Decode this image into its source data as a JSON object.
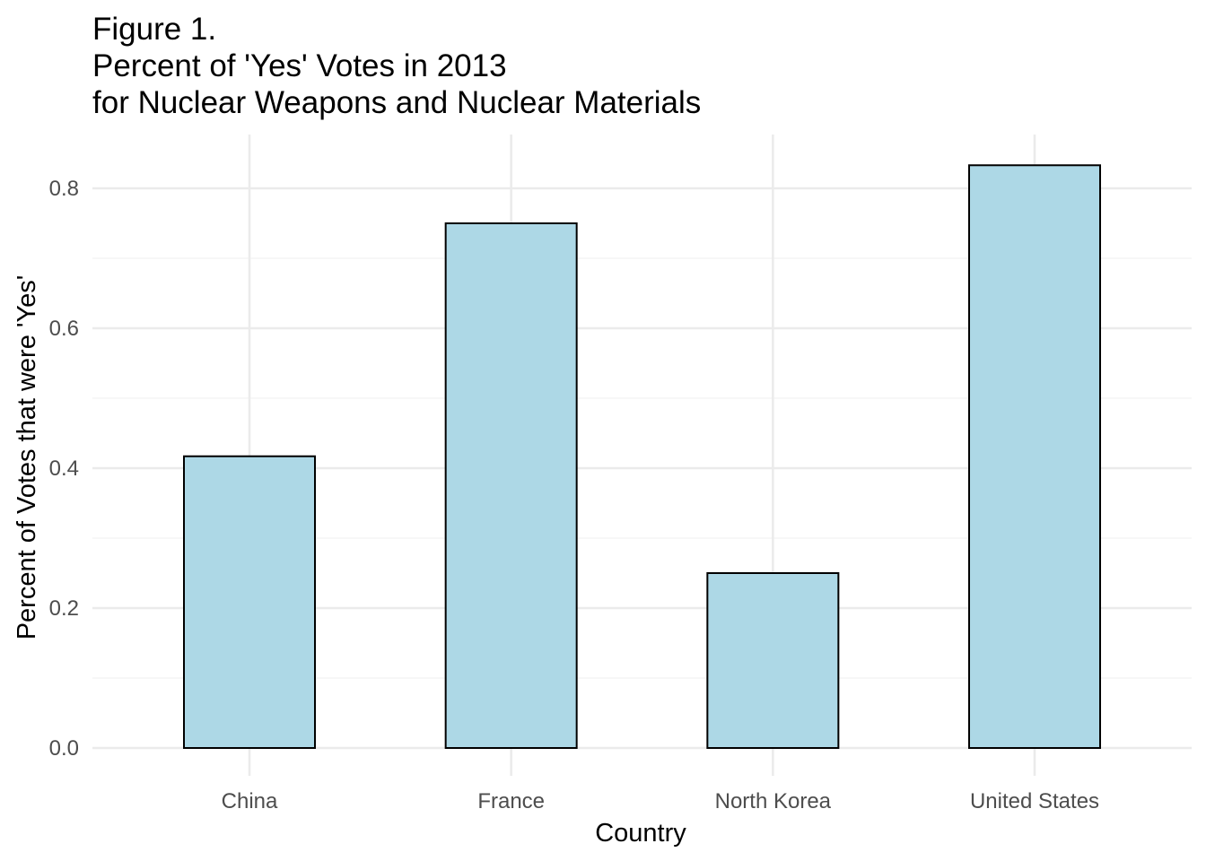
{
  "chart_data": {
    "type": "bar",
    "title": [
      "Figure 1.",
      "Percent of 'Yes' Votes in 2013",
      "for Nuclear Weapons and Nuclear Materials"
    ],
    "xlabel": "Country",
    "ylabel": "Percent of Votes that were 'Yes'",
    "categories": [
      "China",
      "France",
      "North Korea",
      "United States"
    ],
    "values": [
      0.417,
      0.75,
      0.25,
      0.833
    ],
    "ylim": [
      0,
      0.85
    ],
    "yticks": [
      0.0,
      0.2,
      0.4,
      0.6,
      0.8
    ],
    "ytick_labels": [
      "0.0",
      "0.2",
      "0.4",
      "0.6",
      "0.8"
    ],
    "grid": true,
    "bar_color": "#add8e6",
    "bar_edge_color": "#000000"
  }
}
